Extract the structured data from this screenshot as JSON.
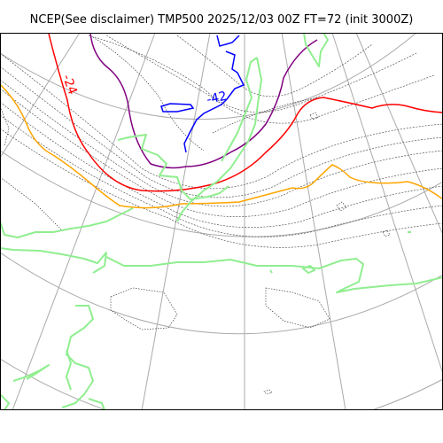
{
  "title": "NCEP(See disclaimer) TMP500 2025/12/03 00Z FT=72 (init 3000Z)",
  "contour_labels": [
    {
      "text": "-24",
      "color": "#ff0000"
    },
    {
      "text": "-42",
      "color": "#0000ff"
    }
  ],
  "colors": {
    "graticule": "#aaaaaa",
    "coastline": "#222222",
    "isotherm_interval": "#555555",
    "isotherm_minus24": "#ff0000",
    "isotherm_minus42": "#0000ff",
    "isotherm_orange": "#ffa500",
    "isotherm_purple": "#800080",
    "isotherm_green": "#90ee90"
  }
}
